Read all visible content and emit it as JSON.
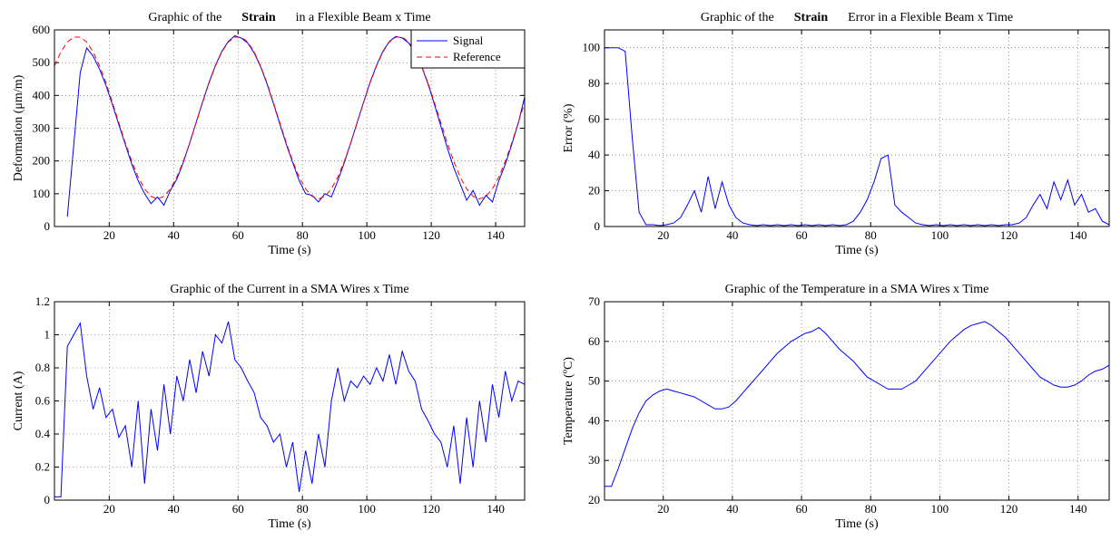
{
  "chart_data": [
    {
      "type": "line",
      "title": [
        "Graphic of the",
        "Strain",
        "in a Flexible Beam x Time"
      ],
      "title_bold": [
        false,
        true,
        false
      ],
      "xlabel": "Time (s)",
      "ylabel": "Deformation (μm/m)",
      "xlim": [
        3,
        149
      ],
      "ylim": [
        0,
        600
      ],
      "xticks": [
        20,
        40,
        60,
        80,
        100,
        120,
        140
      ],
      "yticks": [
        0,
        100,
        200,
        300,
        400,
        500,
        600
      ],
      "grid": true,
      "legend": "upper right",
      "x": [
        3,
        5,
        7,
        9,
        11,
        13,
        15,
        17,
        19,
        21,
        23,
        25,
        27,
        29,
        31,
        33,
        35,
        37,
        39,
        41,
        43,
        45,
        47,
        49,
        51,
        53,
        55,
        57,
        59,
        61,
        63,
        65,
        67,
        69,
        71,
        73,
        75,
        77,
        79,
        81,
        83,
        85,
        87,
        89,
        91,
        93,
        95,
        97,
        99,
        101,
        103,
        105,
        107,
        109,
        111,
        113,
        115,
        117,
        119,
        121,
        123,
        125,
        127,
        129,
        131,
        133,
        135,
        137,
        139,
        141,
        143,
        145,
        147,
        149
      ],
      "series": [
        {
          "name": "Signal",
          "color": "#0000ff",
          "style": "solid",
          "values": [
            null,
            null,
            30,
            250,
            470,
            545,
            520,
            480,
            430,
            372,
            310,
            250,
            190,
            140,
            100,
            70,
            90,
            65,
            110,
            145,
            195,
            255,
            318,
            380,
            440,
            492,
            535,
            565,
            582,
            575,
            560,
            530,
            488,
            435,
            375,
            312,
            250,
            195,
            140,
            100,
            95,
            75,
            100,
            90,
            140,
            195,
            255,
            318,
            380,
            440,
            492,
            535,
            565,
            580,
            575,
            560,
            530,
            488,
            435,
            372,
            305,
            240,
            180,
            130,
            80,
            110,
            65,
            95,
            75,
            140,
            190,
            250,
            315,
            395
          ]
        },
        {
          "name": "Reference",
          "color": "#ff0000",
          "style": "dashed",
          "values": [
            490,
            533,
            563,
            578,
            578,
            563,
            533,
            490,
            438,
            378,
            316,
            255,
            199,
            151,
            115,
            92,
            84,
            92,
            115,
            151,
            199,
            255,
            316,
            378,
            438,
            490,
            533,
            563,
            578,
            578,
            563,
            533,
            490,
            438,
            378,
            316,
            255,
            199,
            151,
            115,
            92,
            84,
            92,
            115,
            151,
            199,
            255,
            316,
            378,
            438,
            490,
            533,
            563,
            578,
            578,
            563,
            533,
            490,
            438,
            378,
            316,
            255,
            199,
            151,
            115,
            92,
            84,
            92,
            115,
            151,
            199,
            255,
            316,
            378
          ]
        }
      ]
    },
    {
      "type": "line",
      "title": [
        "Graphic of the",
        "Strain",
        "Error in a Flexible Beam x Time"
      ],
      "title_bold": [
        false,
        true,
        false
      ],
      "xlabel": "Time (s)",
      "ylabel": "Error (%)",
      "xlim": [
        3,
        149
      ],
      "ylim": [
        0,
        110
      ],
      "xticks": [
        20,
        40,
        60,
        80,
        100,
        120,
        140
      ],
      "yticks": [
        0,
        20,
        40,
        60,
        80,
        100
      ],
      "grid": true,
      "x": [
        3,
        5,
        7,
        9,
        11,
        13,
        15,
        17,
        19,
        21,
        23,
        25,
        27,
        29,
        31,
        33,
        35,
        37,
        39,
        41,
        43,
        45,
        47,
        49,
        51,
        53,
        55,
        57,
        59,
        61,
        63,
        65,
        67,
        69,
        71,
        73,
        75,
        77,
        79,
        81,
        83,
        85,
        87,
        89,
        91,
        93,
        95,
        97,
        99,
        101,
        103,
        105,
        107,
        109,
        111,
        113,
        115,
        117,
        119,
        121,
        123,
        125,
        127,
        129,
        131,
        133,
        135,
        137,
        139,
        141,
        143,
        145,
        147,
        149
      ],
      "series": [
        {
          "name": "Error",
          "color": "#0000ff",
          "style": "solid",
          "values": [
            100,
            100,
            100,
            98,
            50,
            8,
            1,
            1,
            0.5,
            1,
            2,
            5,
            12,
            20,
            8,
            28,
            10,
            25,
            12,
            5,
            2,
            1,
            0.5,
            1,
            0.5,
            1,
            0.5,
            1,
            0.5,
            1,
            0.5,
            1,
            0.5,
            1,
            0.5,
            1,
            3,
            8,
            15,
            25,
            38,
            40,
            12,
            8,
            5,
            2,
            1,
            0.5,
            1,
            0.5,
            1,
            0.5,
            1,
            0.5,
            1,
            0.5,
            1,
            0.5,
            1,
            1,
            2,
            5,
            12,
            18,
            10,
            25,
            15,
            26,
            12,
            18,
            8,
            10,
            3,
            1
          ]
        }
      ]
    },
    {
      "type": "line",
      "title": [
        "Graphic of the Current in a SMA Wires x Time"
      ],
      "title_bold": [
        false
      ],
      "xlabel": "Time (s)",
      "ylabel": "Current (A)",
      "xlim": [
        3,
        149
      ],
      "ylim": [
        0,
        1.2
      ],
      "xticks": [
        20,
        40,
        60,
        80,
        100,
        120,
        140
      ],
      "yticks": [
        0,
        0.2,
        0.4,
        0.6,
        0.8,
        1,
        1.2
      ],
      "grid": true,
      "x": [
        3,
        5,
        7,
        9,
        11,
        13,
        15,
        17,
        19,
        21,
        23,
        25,
        27,
        29,
        31,
        33,
        35,
        37,
        39,
        41,
        43,
        45,
        47,
        49,
        51,
        53,
        55,
        57,
        59,
        61,
        63,
        65,
        67,
        69,
        71,
        73,
        75,
        77,
        79,
        81,
        83,
        85,
        87,
        89,
        91,
        93,
        95,
        97,
        99,
        101,
        103,
        105,
        107,
        109,
        111,
        113,
        115,
        117,
        119,
        121,
        123,
        125,
        127,
        129,
        131,
        133,
        135,
        137,
        139,
        141,
        143,
        145,
        147,
        149
      ],
      "series": [
        {
          "name": "Current",
          "color": "#0000ff",
          "style": "solid",
          "values": [
            0.02,
            0.02,
            0.93,
            1.0,
            1.07,
            0.75,
            0.55,
            0.68,
            0.5,
            0.55,
            0.38,
            0.45,
            0.2,
            0.6,
            0.1,
            0.55,
            0.3,
            0.7,
            0.4,
            0.75,
            0.6,
            0.85,
            0.65,
            0.9,
            0.75,
            1.0,
            0.95,
            1.08,
            0.85,
            0.8,
            0.72,
            0.65,
            0.5,
            0.45,
            0.35,
            0.4,
            0.2,
            0.35,
            0.05,
            0.3,
            0.1,
            0.4,
            0.2,
            0.6,
            0.8,
            0.6,
            0.72,
            0.68,
            0.75,
            0.7,
            0.8,
            0.72,
            0.88,
            0.7,
            0.9,
            0.78,
            0.72,
            0.55,
            0.48,
            0.4,
            0.35,
            0.2,
            0.45,
            0.1,
            0.5,
            0.2,
            0.6,
            0.35,
            0.7,
            0.5,
            0.78,
            0.6,
            0.72,
            0.7
          ]
        }
      ]
    },
    {
      "type": "line",
      "title": [
        "Graphic of the Temperature in a SMA Wires x Time"
      ],
      "title_bold": [
        false
      ],
      "xlabel": "Time (s)",
      "ylabel": "Temperature (ºC)",
      "xlim": [
        3,
        149
      ],
      "ylim": [
        20,
        70
      ],
      "xticks": [
        20,
        40,
        60,
        80,
        100,
        120,
        140
      ],
      "yticks": [
        20,
        30,
        40,
        50,
        60,
        70
      ],
      "grid": true,
      "x": [
        3,
        5,
        7,
        9,
        11,
        13,
        15,
        17,
        19,
        21,
        23,
        25,
        27,
        29,
        31,
        33,
        35,
        37,
        39,
        41,
        43,
        45,
        47,
        49,
        51,
        53,
        55,
        57,
        59,
        61,
        63,
        65,
        67,
        69,
        71,
        73,
        75,
        77,
        79,
        81,
        83,
        85,
        87,
        89,
        91,
        93,
        95,
        97,
        99,
        101,
        103,
        105,
        107,
        109,
        111,
        113,
        115,
        117,
        119,
        121,
        123,
        125,
        127,
        129,
        131,
        133,
        135,
        137,
        139,
        141,
        143,
        145,
        147,
        149
      ],
      "series": [
        {
          "name": "Temperature",
          "color": "#0000ff",
          "style": "solid",
          "values": [
            23.5,
            23.5,
            28,
            33,
            38,
            42,
            45,
            46.5,
            47.5,
            48,
            47.5,
            47,
            46.5,
            46,
            45,
            44,
            43,
            43,
            43.5,
            45,
            47,
            49,
            51,
            53,
            55,
            57,
            58.5,
            60,
            61,
            62,
            62.5,
            63.5,
            62,
            60,
            58,
            56.5,
            55,
            53,
            51,
            50,
            49,
            48,
            48,
            48,
            49,
            50,
            52,
            54,
            56,
            58,
            60,
            61.5,
            63,
            64,
            64.5,
            65,
            64,
            62.5,
            61,
            59,
            57,
            55,
            53,
            51,
            50,
            49,
            48.5,
            48.5,
            49,
            50,
            51.5,
            52.5,
            53,
            54
          ]
        }
      ]
    }
  ]
}
